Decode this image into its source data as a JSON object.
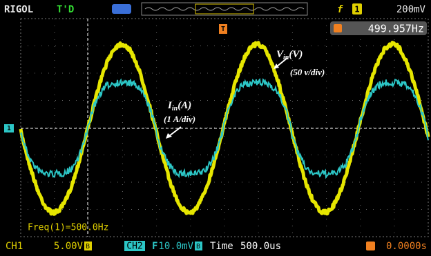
{
  "header": {
    "brand": "RIGOL",
    "status": "T'D",
    "trigger_slope": "f",
    "trigger_channel": "1",
    "trigger_level": "200mV",
    "trigger_marker": "T",
    "trigger_frequency": "499.957Hz"
  },
  "channel_marker": "1",
  "annotations": {
    "voltage_symbol": "V",
    "voltage_subscript": "in",
    "voltage_unit": "(V)",
    "voltage_scale": "(50 v/div)",
    "current_symbol": "I",
    "current_subscript": "in",
    "current_unit": "(A)",
    "current_scale": "(1 A/div)"
  },
  "measurement": "Freq(1)=500.0Hz",
  "footer": {
    "ch1_label": "CH1",
    "ch1_scale": "5.00V",
    "ch1_coupling": "B",
    "ch2_label": "CH2",
    "ch2_filter": "F",
    "ch2_scale": "10.0mV",
    "ch2_coupling": "B",
    "time_label": "Time",
    "time_base": "500.0us",
    "trigger_offset": "0.0000s"
  }
}
